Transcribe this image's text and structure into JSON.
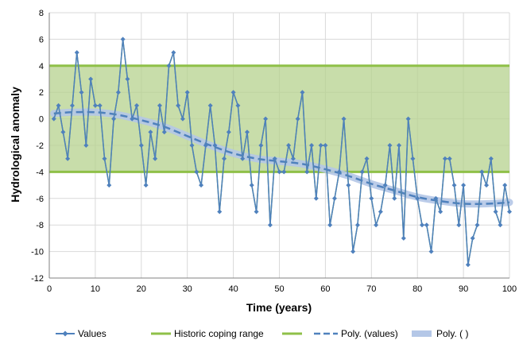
{
  "chart_data": {
    "type": "line",
    "title": "",
    "xlabel": "Time (years)",
    "ylabel": "Hydrological anomaly",
    "xlim": [
      0,
      100
    ],
    "ylim": [
      -12,
      8
    ],
    "xticks": [
      0,
      10,
      20,
      30,
      40,
      50,
      60,
      70,
      80,
      90,
      100
    ],
    "yticks": [
      -12,
      -10,
      -8,
      -6,
      -4,
      -2,
      0,
      2,
      4,
      6,
      8
    ],
    "grid": true,
    "legend_position": "bottom",
    "band": {
      "name": "Historic coping range",
      "lower": -4,
      "upper": 4,
      "fill": "#b5d18e",
      "line": "#8fc048"
    },
    "series": [
      {
        "name": "Values",
        "color": "#4f81bd",
        "x": [
          1,
          2,
          3,
          4,
          5,
          6,
          7,
          8,
          9,
          10,
          11,
          12,
          13,
          14,
          15,
          16,
          17,
          18,
          19,
          20,
          21,
          22,
          23,
          24,
          25,
          26,
          27,
          28,
          29,
          30,
          31,
          32,
          33,
          34,
          35,
          36,
          37,
          38,
          39,
          40,
          41,
          42,
          43,
          44,
          45,
          46,
          47,
          48,
          49,
          50,
          51,
          52,
          53,
          54,
          55,
          56,
          57,
          58,
          59,
          60,
          61,
          62,
          63,
          64,
          65,
          66,
          67,
          68,
          69,
          70,
          71,
          72,
          73,
          74,
          75,
          76,
          77,
          78,
          79,
          80,
          81,
          82,
          83,
          84,
          85,
          86,
          87,
          88,
          89,
          90,
          91,
          92,
          93,
          94,
          95,
          96,
          97,
          98,
          99,
          100
        ],
        "y": [
          0,
          1,
          -1,
          -3,
          1,
          5,
          2,
          -2,
          3,
          1,
          1,
          -3,
          -5,
          0,
          2,
          6,
          3,
          0,
          1,
          -2,
          -5,
          -1,
          -3,
          1,
          -1,
          4,
          5,
          1,
          0,
          2,
          -2,
          -4,
          -5,
          -2,
          1,
          -2,
          -7,
          -3,
          -1,
          2,
          1,
          -3,
          -1,
          -5,
          -7,
          -2,
          0,
          -8,
          -3,
          -4,
          -4,
          -2,
          -3,
          0,
          2,
          -4,
          -2,
          -6,
          -2,
          -2,
          -8,
          -6,
          -4,
          0,
          -5,
          -10,
          -8,
          -4,
          -3,
          -6,
          -8,
          -7,
          -5,
          -2,
          -6,
          -2,
          -9,
          0,
          -3,
          -6,
          -8,
          -8,
          -10,
          -6,
          -7,
          -3,
          -3,
          -5,
          -8,
          -5,
          -11,
          -9,
          -8,
          -4,
          -5,
          -3,
          -7,
          -8,
          -5,
          -7
        ]
      },
      {
        "name": "Historic coping range",
        "color": "#8fc048"
      },
      {
        "name": "",
        "color": "#8fc048"
      },
      {
        "name": "Poly. (values)",
        "color": "#4f81bd",
        "dash": true,
        "x": [
          1,
          5,
          10,
          15,
          20,
          25,
          30,
          35,
          40,
          45,
          50,
          55,
          60,
          65,
          70,
          75,
          80,
          85,
          90,
          95,
          100
        ],
        "y": [
          0.4,
          0.5,
          0.5,
          0.3,
          -0.1,
          -0.6,
          -1.3,
          -2.0,
          -2.6,
          -3.0,
          -3.2,
          -3.4,
          -3.8,
          -4.3,
          -4.9,
          -5.4,
          -5.9,
          -6.2,
          -6.4,
          -6.4,
          -6.3
        ]
      },
      {
        "name": "Poly. ( )",
        "color": "#b4c7e7",
        "x": [
          1,
          5,
          10,
          15,
          20,
          25,
          30,
          35,
          40,
          45,
          50,
          55,
          60,
          65,
          70,
          75,
          80,
          85,
          90,
          95,
          100
        ],
        "y": [
          0.4,
          0.5,
          0.5,
          0.3,
          -0.1,
          -0.6,
          -1.3,
          -2.0,
          -2.6,
          -3.0,
          -3.2,
          -3.4,
          -3.8,
          -4.3,
          -4.9,
          -5.4,
          -5.9,
          -6.2,
          -6.4,
          -6.4,
          -6.3
        ]
      }
    ],
    "secondary_series": {
      "name": "",
      "color": "#6aa84f",
      "x": [
        1,
        2,
        3,
        4,
        5,
        6,
        7,
        8,
        9,
        10,
        11,
        12,
        13,
        14,
        15,
        16,
        17,
        18,
        19,
        20,
        21,
        22,
        23,
        24,
        25,
        26,
        27,
        28,
        29,
        30,
        31,
        32,
        33,
        34,
        35,
        36,
        37,
        38,
        39,
        40,
        41,
        42,
        43,
        44,
        45,
        46,
        47,
        48,
        49,
        50,
        51,
        52,
        53,
        54,
        55,
        56,
        57,
        58,
        59,
        60,
        61,
        62,
        63,
        64,
        65,
        66,
        67,
        68,
        69,
        70,
        71,
        72,
        73,
        74,
        75,
        76,
        77,
        78,
        79,
        80,
        81,
        82,
        83,
        84,
        85,
        86,
        87,
        88,
        89,
        90,
        91,
        92,
        93,
        94,
        95,
        96,
        97,
        98,
        99,
        100
      ],
      "y": [
        0,
        1,
        -1,
        -3,
        1,
        5,
        2,
        -2,
        3,
        1,
        1,
        -3,
        -5,
        0,
        2,
        6,
        3,
        0,
        1,
        -2,
        -5,
        -1,
        -3,
        1,
        -1,
        4,
        5,
        1,
        0,
        2,
        -2,
        -4,
        -5,
        -2,
        1,
        -2,
        -7,
        -3,
        -1,
        2,
        1,
        -3,
        -1,
        -5,
        -7,
        -2,
        0,
        -8,
        -3,
        -4,
        -4,
        -2,
        -3,
        0,
        2,
        -4,
        -2,
        -6,
        -2,
        -2,
        -8,
        -6,
        -4,
        0,
        -5,
        -10,
        -8,
        -4,
        -3,
        -6,
        -8,
        -7,
        -5,
        -2,
        -6,
        -2,
        -9,
        0,
        -3,
        -6,
        -8,
        -8,
        -10,
        -6,
        -7,
        -3,
        -3,
        -5,
        -8,
        -5,
        -11,
        -9,
        -8,
        -4,
        -5,
        -3,
        -7,
        -8,
        -5,
        -7
      ]
    }
  }
}
